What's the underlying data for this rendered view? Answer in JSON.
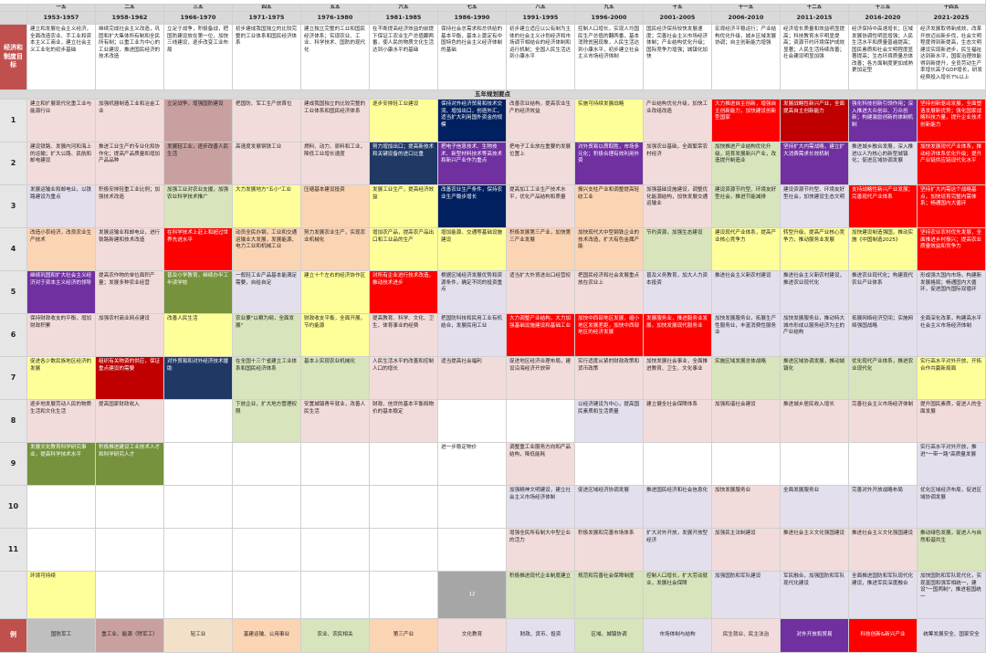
{
  "header": {
    "plan_numbers": [
      "一五",
      "二五",
      "三五",
      "四五",
      "五五",
      "六五",
      "七五",
      "八五",
      "九五",
      "十五",
      "十一五",
      "十二五",
      "十三五",
      "十四五"
    ],
    "years": [
      "1953-1957",
      "1958-1962",
      "1966-1970",
      "1971-1975",
      "1976-1980",
      "1981-1985",
      "1986-1990",
      "1991-1995",
      "1996-2000",
      "2001-2005",
      "2006-2010",
      "2011-2015",
      "2016-2020",
      "2021-2025"
    ]
  },
  "goals": {
    "label": "经济和制度目标",
    "cells": [
      "建立和发展社会主义经济，全面改造农业、手工业和资本主义工商业，建立社会主义工业化的初步基础",
      "继续完成社会主义改造，巩固和扩大集体所有制和全民所有制；以重工业为中心的工业建设，推进国民经济的技术改造",
      "立足于战争，积极备战，把国防建设放在第一位，加快三线建设，逐步改变工业布局",
      "初步建成我国独立的比较完整的工业体系和国民经济体系",
      "建立独立完整的工业和国民经济体系；实现农业、工业、科学技术、国防的现代化",
      "在不断提高经济效益的前提下保证工农业生产总值翻两番，使人民的物质文化生活达到小康水平的基础",
      "保持社会总需求和总供给的基本平衡，基本上奠定有中国特色的社会主义经济体制的基础",
      "初步建立适应以公有制为主体的社会主义计划经济和市场调节相结合的经济体制和运行机制；全国人民生活达到小康水平",
      "控制人口增长，实现人均国民生产总值的翻两番，基本消除贫困现象，人民生活达到小康水平，初步建立社会主义市场经济体制",
      "国民经济保持较快发展速度；完善社会主义市场经济体制；产业结构优化升级；国际竞争力增强；城镇化加快",
      "宏观经济平稳运行；产业结构优化升级，城乡区域发展协调；自主创新能力增强",
      "经济增长质量和效益明显提高；科技教育水平明显提高；资源节约环境保护成效显著；人民生活持续改善；社会建设明显加强",
      "经济保持中高速增长；区域发展协调性明显增强；人民生活水平和质量普遍提高；国民素质和社会文明程度显著提高；生态环境质量总体改善；各方面制度更加成熟更加定型",
      "经济发展取得新成效，改革开放迈出新步伐，社会文明程度得到新提高，生态文明建设实现新进步，民生福祉达到新水平，国家治理效能得到新提升，全员劳动生产率增长高于GDP增长，研发经费投入增长7%以上"
    ]
  },
  "band_title": "五年规划要点",
  "rows": [
    {
      "num": "1",
      "cells": [
        "建立和扩展现代化重工业与能源行业",
        "加强机器制造工业和冶金工业",
        "立足战争，增强国防建设",
        "把国防、军工生产放首位",
        "建成我国独立的比较完整的工业体系和国民经济体系",
        "逐步安排轻工业建设",
        "保持对外经济贸易和技术交流、增加出口，创造外汇，适当扩大利用国外资金的规模",
        "改善农业结构，提高农业生产的经济效益",
        "实施可持续发展战略",
        "产业结构优化升级，加快工业改组改造",
        "大力推进自主创新，增强自主创新能力，加快建设创新型国家",
        "发展战略性新兴产业，全面提高自主创新能力",
        "强化科技创新引领作用；深入推进大众创业、万众创新；构建激励创新的体制机制",
        "坚持创新驱动发展，全面塑造发展新优势；强化国家战略科技力量，提升企业技术创新能力"
      ]
    },
    {
      "num": "2",
      "cells": [
        "建设铁路、发展内河和海上的运输；扩大公路、民航和邮电建设",
        "推进工业生产的专业化和协作化；提高产品质量和增加产品品种",
        "发展轻工业，逐步改善人民生活",
        "高速度发展钢铁工业",
        "燃料、动力、原料和工业，降低工业增长速度",
        "努力增加出口；提高新技术和关键设备的进口比重",
        "把电子信息技术、生物技术、新型材料技术等高技术和新兴产业作为重点",
        "把电子工业放在重要的发展位置上",
        "对外贸易以质取胜，市场多元化；积极合理有效利用外资",
        "加强农业基础，全面繁荣农村经济",
        "加快推进产业结构优化升级，培育发展新兴产业，改造提升制造业",
        "坚持扩大内需战略，建立扩大消费需求长效机制",
        "推进城乡融合发展，深入推进以人为核心的新型城镇化；促进区域协调发展",
        "加快发展现代产业体系，推动经济体系优化升级；提升产业链供应链现代化水平"
      ]
    },
    {
      "num": "3",
      "cells": [
        "发展运输业和邮电业，以铁路建设为重点",
        "积极安排轻重工业比例；加强技术改造",
        "加强工业对农业支援，加强农业科学技术推广",
        "大力发展地方\"五小\"工业",
        "压缩基本建设投资",
        "发展工业生产，提高经济效益",
        "改善农业生产条件，保持农业生产稳步增长",
        "提高加工工业生产技术水平，优化产品结构和质量",
        "振兴支柱产业和调整提高轻纺工业",
        "加强基础设施建设，调整优化能源结构，加快发展交通运输业",
        "建设资源节约型、环境友好型社会，推进节能减排",
        "建设资源节约型、环境友好型社会，加快建设生态文明",
        "支持战略性新兴产业发展；完善现代产业体系",
        "坚持扩大内需这个战略基点，加快培育完整内需体系；畅通国内大循环"
      ]
    },
    {
      "num": "4",
      "cells": [
        "改造小农经济，改良农业生产技术",
        "发展运输业和邮电业，进行铁路新建和技术改造",
        "在科学技术上赶上和超过世界先进水平",
        "动员全民办钢，工业和交通运输业大发展，发展能源、电力工业和机械工业",
        "努力发展农业生产，实现农业机械化",
        "增加农产品，提高农产品出口和工业品的生产",
        "增加能源、交通等基础设施建设",
        "积极发展第三产业，加快第三产业发展",
        "加快现代大中型钢铁企业的技术改造，扩大有色金属产能",
        "节约资源，加强生态建设",
        "建设现代产业体系，提高产业核心竞争力",
        "转型升级，提高产业核心竞争力，推动服务业发展",
        "加快建设制造强国，推动实施《中国制造2025》",
        "坚持农业农村优先发展，全面推进乡村振兴；提高农业质量效益和竞争力"
      ]
    },
    {
      "num": "5",
      "cells": [
        "继续巩固和扩大社会主义经济对于资本主义经济的领导",
        "提高农作物的单位面积产量；发展多种农业经营",
        "普及小学教育，继续办半工半读学校",
        "一般轻工业产品基本能满足需要，自给自足",
        "建立十个左右的经济协作区",
        "对所有企业进行技术改造，推动技术进步",
        "根据区域经济发展优势和资源条件，确定不同的投资重点",
        "适当扩大外贸进出口经营权",
        "把国民经济和社会发展重点放在农业上",
        "普及义务教育，加大人力资本投资",
        "推进社会主义新农村建设",
        "推进社会主义新农村建设，推进农业现代化",
        "推进农业现代化；构建现代农业产业体系",
        "形成强大国内市场，构建新发展格局；畅通国内大循环，促进国内国际双循环"
      ]
    },
    {
      "num": "6",
      "cells": [
        "保持财政收支的平衡，增加财政积累",
        "加强农村商业网点建设",
        "改善人民生活",
        "农业要\"以粮为纲，全面发展\"",
        "财政收支平衡，全面开展，节约能源",
        "提高教育、科学、文化、卫生、体育事业的经费",
        "把国防科技和民用工业有机结合，发展民用工业",
        "大力调整产业结构，大力加强基础设施建设和基础工业",
        "加快中西部地区发展，缩小地区发展差距，加快中西部地区的经济发展",
        "发展服务业，推进服务业发展，加快发展现代服务业",
        "加快发展服务业，拓展生产性服务业，丰富消费性服务业",
        "加快发展服务业，推动特大城市形成以服务经济为主的产业结构",
        "拓展网络经济空间；实施网络强国战略",
        "全面深化改革，构建高水平社会主义市场经济体制"
      ]
    },
    {
      "num": "7",
      "cells": [
        "促进各少数民族地区经济的发展",
        "组织有关物资的供应，保证重点建设的需要",
        "对外贸易和对外经济技术援助",
        "在全国十三个省建立工业体系和国民经济体系",
        "基本上实现农业机械化",
        "人民生活水平的改善和控制人口的增长",
        "适当提高社会福利",
        "促进地区经济合理布局，建设沿海经济开放带",
        "实行适度从紧的财政政策和货币政策",
        "加快发展社会事业，全面推进教育、卫生、文化事业",
        "实施区域发展总体战略",
        "推进区域协调发展，推动城镇化",
        "优化现代产业体系，推进农业现代化",
        "实行高水平对外开放，开拓合作共赢新局面"
      ]
    },
    {
      "num": "8",
      "cells": [
        "逐步地发展劳动人民的物质生活和文化生活",
        "提高国家财政收入",
        "",
        "下放企业，扩大地方管理权限",
        "安置城镇青年就业，改善人民生活",
        "财政、信贷的基本平衡和物价的基本稳定",
        "",
        "",
        "以经济建设为中心，提高国民素质和生活质量",
        "建立健全社会保障体系",
        "加强和谐社会建设",
        "推进城乡居民收入增长",
        "完善社会主义市场经济体制",
        "提升国民素质，促进人的全面发展"
      ]
    },
    {
      "num": "9",
      "cells": [
        "发展文化教育科学研究事业，提高科学技术水平",
        "积极推进建设工业技术人才和科学研究人才",
        "",
        "",
        "",
        "",
        "进一步稳定物价",
        "调整重工业服务方向和产品结构，降低能耗",
        "",
        "",
        "",
        "",
        "",
        "实行高水平对外开放，推进\"一带一路\"高质量发展"
      ]
    },
    {
      "num": "10",
      "cells": [
        "",
        "",
        "",
        "",
        "",
        "",
        "",
        "加强精神文明建设，建立社会主义市场经济体制",
        "促进区域经济协调发展",
        "推进国民经济和社会信息化",
        "加快发展服务业",
        "全面发展服务业",
        "完善对外开放战略布局",
        "优化区域经济布局，促进区域协调发展"
      ]
    },
    {
      "num": "11",
      "cells": [
        "",
        "",
        "",
        "",
        "",
        "",
        "",
        "增强全民所有制大中型企业的活力",
        "积极发展和完善市场体系",
        "扩大对外开放，发展开放型经济",
        "加强民主法制建设",
        "推进社会主义文化强国建设",
        "推进社会主义文化强国建设",
        "推动绿色发展，促进人与自然和谐共生"
      ]
    },
    {
      "num": "12",
      "cells": [
        "环境可持续",
        "",
        "",
        "",
        "",
        "",
        "",
        "积极推进现代企业制度建立",
        "规范和完善社会保障制度",
        "控制人口增长，扩大劳动就业，发展社会保障",
        "加强国防和军队建设",
        "军民融合，加强国防和军队现代化建设",
        "全面推进国防和军队现代化建设，推进军民深度融合",
        "加快国防和军队现代化，实现富国和强军相统一，建设\"一国两制\"，推进祖国统一"
      ]
    }
  ],
  "legend": {
    "label": "例",
    "cells": [
      "国防军工",
      "重工业、能源（除军工）",
      "轻工业",
      "基建运输、公用事业",
      "农业、农民相关",
      "第三产业",
      "文化教育",
      "财政、货币、投资",
      "区域、城镇协调",
      "市场体制与结构",
      "民生就业、民主法治",
      "对外开放和贸易",
      "科技创新&新兴产业",
      "统筹发展安全、国家安全"
    ]
  },
  "colors": {
    "header": "#d9d9d9",
    "side_label": "#c0504d"
  }
}
